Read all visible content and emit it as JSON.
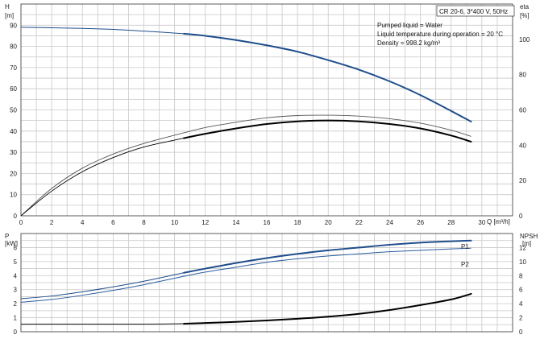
{
  "chart_data": [
    {
      "type": "line",
      "panel": "head-efficiency",
      "pump_label": "CR 20-6, 3*400 V, 50Hz",
      "info_lines": [
        "Pumped liquid = Water",
        "Liquid temperature during operation = 20 °C",
        "Density = 998.2 kg/m³"
      ],
      "left_axis": {
        "unit_symbol": "H",
        "unit": "[m]",
        "ylim": [
          0,
          100
        ],
        "ticks": [
          "0",
          "10",
          "20",
          "30",
          "40",
          "50",
          "60",
          "70",
          "80",
          "90"
        ]
      },
      "right_axis": {
        "unit_symbol": "eta",
        "unit": "[%]",
        "ylim": [
          0,
          120
        ],
        "ticks": [
          "0",
          "20",
          "40",
          "60",
          "80",
          "100"
        ]
      },
      "x_axis": {
        "label": "Q [m³/h]",
        "xlim": [
          0,
          32
        ],
        "ticks": [
          "0",
          "2",
          "4",
          "6",
          "8",
          "10",
          "12",
          "14",
          "16",
          "18",
          "20",
          "22",
          "24",
          "26",
          "28",
          "30"
        ]
      },
      "grid": true,
      "colors": {
        "head": "#1f4e8c",
        "eta": "#000000",
        "eta_outline": "#555555",
        "grid": "#c8c8c8"
      },
      "series": [
        {
          "role": "head",
          "axis": "left",
          "x": [
            0,
            2,
            4,
            6,
            8,
            10.6,
            12,
            14,
            16,
            18,
            20,
            22,
            24,
            26,
            28,
            29.3
          ],
          "y": [
            89,
            88.8,
            88.5,
            88,
            87.2,
            86,
            85,
            83,
            80.5,
            77.5,
            73.5,
            69,
            63.5,
            57,
            49.5,
            44.5
          ],
          "bold_from": 10.6
        },
        {
          "role": "eta",
          "axis": "right",
          "x": [
            0,
            2,
            4,
            6,
            8,
            10.6,
            12,
            14,
            16,
            18,
            20,
            22,
            24,
            26,
            28,
            29.3
          ],
          "y": [
            0,
            14,
            25,
            33,
            39,
            44,
            46.5,
            49.5,
            52,
            53.5,
            54,
            53.5,
            52,
            49.5,
            45.5,
            42
          ],
          "bold_from": 10.6
        },
        {
          "role": "eta-upper",
          "axis": "right",
          "x": [
            0,
            2,
            4,
            6,
            8,
            10.6,
            12,
            14,
            16,
            18,
            20,
            22,
            24,
            26,
            28,
            29.3
          ],
          "y": [
            0,
            15.5,
            27,
            35,
            41,
            47,
            50,
            53,
            55.5,
            56.8,
            57,
            56.5,
            55,
            52.5,
            48.5,
            45
          ]
        }
      ]
    },
    {
      "type": "line",
      "panel": "power-npsh",
      "left_axis": {
        "unit_symbol": "P",
        "unit": "[kW]",
        "ylim": [
          0,
          7
        ],
        "ticks": [
          "0",
          "1",
          "2",
          "3",
          "4",
          "5",
          "6"
        ]
      },
      "right_axis": {
        "unit_symbol": "NPSH",
        "unit": "[m]",
        "ylim": [
          0,
          14
        ],
        "ticks": [
          "0",
          "2",
          "4",
          "6",
          "8",
          "10",
          "12"
        ]
      },
      "x_axis": {
        "xlim": [
          0,
          32
        ],
        "ticks": []
      },
      "grid": true,
      "colors": {
        "p1": "#1f4e8c",
        "p2": "#2b5c9e",
        "npsh": "#000000"
      },
      "series": [
        {
          "name": "P1",
          "axis": "left",
          "x": [
            0,
            2,
            4,
            6,
            8,
            10.6,
            12,
            14,
            16,
            18,
            20,
            22,
            24,
            26,
            28,
            29.3
          ],
          "y": [
            2.35,
            2.55,
            2.85,
            3.2,
            3.6,
            4.2,
            4.5,
            4.9,
            5.25,
            5.55,
            5.8,
            6.0,
            6.2,
            6.35,
            6.45,
            6.5
          ],
          "bold_from": 10.6
        },
        {
          "name": "P2",
          "axis": "left",
          "x": [
            0,
            2,
            4,
            6,
            8,
            10.6,
            12,
            14,
            16,
            18,
            20,
            22,
            24,
            26,
            28,
            29.3
          ],
          "y": [
            2.1,
            2.3,
            2.6,
            2.95,
            3.35,
            3.95,
            4.25,
            4.6,
            4.95,
            5.2,
            5.4,
            5.55,
            5.7,
            5.8,
            5.9,
            5.95
          ]
        },
        {
          "role": "NPSH",
          "axis": "right",
          "x": [
            0,
            2,
            4,
            6,
            8,
            10.6,
            12,
            14,
            16,
            18,
            20,
            22,
            24,
            26,
            28,
            29.3
          ],
          "y": [
            1.1,
            1.1,
            1.1,
            1.1,
            1.1,
            1.15,
            1.25,
            1.4,
            1.6,
            1.85,
            2.15,
            2.55,
            3.1,
            3.8,
            4.6,
            5.4
          ],
          "bold_from": 10.6
        }
      ]
    }
  ]
}
